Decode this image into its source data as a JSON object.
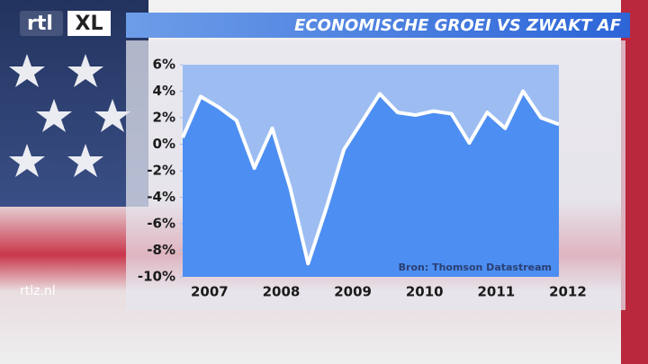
{
  "chart_data": {
    "type": "line",
    "title": "ECONOMISCHE GROEI VS ZWAKT AF",
    "logo": "rtl",
    "logo_suffix": "XL",
    "website": "rtlz.nl",
    "annotation": "Bron: Thomson Datastream",
    "x": [
      2007.125,
      2007.375,
      2007.625,
      2007.875,
      2008.125,
      2008.375,
      2008.625,
      2008.875,
      2009.125,
      2009.375,
      2009.625,
      2009.875,
      2010.125,
      2010.375,
      2010.625,
      2010.875,
      2011.125,
      2011.375,
      2011.625,
      2011.875,
      2012.125,
      2012.375
    ],
    "series": [
      {
        "color": "#ffffff",
        "fill": "#4d8ef2",
        "values": [
          0.5,
          3.6,
          2.8,
          1.8,
          -1.8,
          1.2,
          -3.3,
          -9.0,
          -4.9,
          -0.4,
          1.7,
          3.8,
          2.4,
          2.2,
          2.5,
          2.3,
          0.1,
          2.4,
          1.2,
          4.0,
          2.0,
          1.5
        ]
      }
    ],
    "xlim": [
      2007.125,
      2012.375
    ],
    "xticks": [
      {
        "value": 2007.5,
        "label": "2007"
      },
      {
        "value": 2008.5,
        "label": "2008"
      },
      {
        "value": 2009.5,
        "label": "2009"
      },
      {
        "value": 2010.5,
        "label": "2010"
      },
      {
        "value": 2011.5,
        "label": "2011"
      },
      {
        "value": 2012.5,
        "label": "2012"
      }
    ],
    "ylim": [
      -10,
      6
    ],
    "yticks": [
      {
        "value": -10,
        "label": "-10%"
      },
      {
        "value": -8,
        "label": "-8%"
      },
      {
        "value": -6,
        "label": "-6%"
      },
      {
        "value": -4,
        "label": "-4%"
      },
      {
        "value": -2,
        "label": "-2%"
      },
      {
        "value": 0,
        "label": "0%"
      },
      {
        "value": 2,
        "label": "2%"
      },
      {
        "value": 4,
        "label": "4%"
      },
      {
        "value": 6,
        "label": "6%"
      }
    ],
    "plot_background": "#9dbdf2"
  }
}
